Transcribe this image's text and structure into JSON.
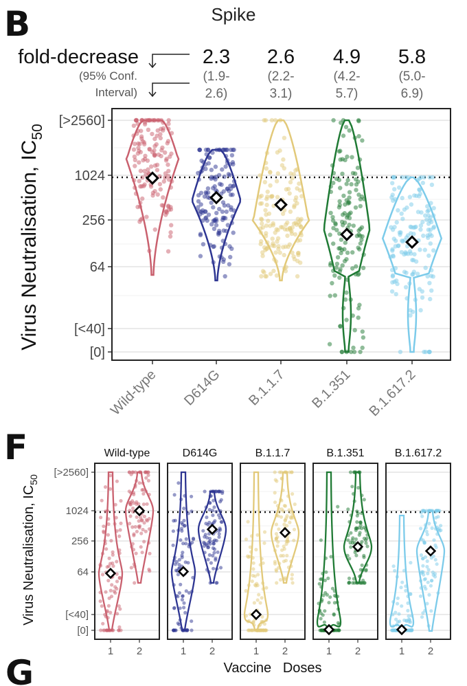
{
  "panels": {
    "b_letter": "B",
    "f_letter": "F",
    "g_letter": "G"
  },
  "chart_data": [
    {
      "id": "B",
      "type": "violin",
      "title": "Spike",
      "fold_label": "fold-decrease",
      "ci_label_line1": "(95% Conf.",
      "ci_label_line2": "Interval)",
      "ylabel_main": "Virus Neutralisation, IC",
      "ylabel_sub": "50",
      "yscale": "log2",
      "yticks": [
        "[>2560]",
        "1024",
        "256",
        "64",
        "[<40]",
        "[0]"
      ],
      "threshold": 1024,
      "categories": [
        "Wild-type",
        "D614G",
        "B.1.1.7",
        "B.1.351",
        "B.1.617.2"
      ],
      "colors": [
        "#c9606e",
        "#2d3592",
        "#e2c979",
        "#1f7a34",
        "#7ccbea"
      ],
      "medians": [
        940,
        520,
        420,
        170,
        135
      ],
      "fold_decrease": [
        {
          "value": "2.3",
          "ci_line1": "(1.9-",
          "ci_line2": "2.6)"
        },
        {
          "value": "2.6",
          "ci_line1": "(2.2-",
          "ci_line2": "3.1)"
        },
        {
          "value": "4.9",
          "ci_line1": "(4.2-",
          "ci_line2": "5.7)"
        },
        {
          "value": "5.8",
          "ci_line1": "(5.0-",
          "ci_line2": "6.9)"
        }
      ]
    },
    {
      "id": "F",
      "type": "violin",
      "ylabel_main": "Virus Neutralisation, IC",
      "ylabel_sub": "50",
      "xlabel": "Vaccine   Doses",
      "yticks": [
        "[>2560]",
        "1024",
        "256",
        "64",
        "[<40]",
        "[0]"
      ],
      "threshold": 1024,
      "doses": [
        "1",
        "2"
      ],
      "facets": [
        {
          "name": "Wild-type",
          "color": "#c9606e",
          "medians": [
            60,
            1024
          ]
        },
        {
          "name": "D614G",
          "color": "#2d3592",
          "medians": [
            65,
            440
          ]
        },
        {
          "name": "B.1.1.7",
          "color": "#e2c979",
          "medians": [
            "<40",
            380
          ]
        },
        {
          "name": "B.1.351",
          "color": "#1f7a34",
          "medians": [
            "0",
            200
          ]
        },
        {
          "name": "B.1.617.2",
          "color": "#7ccbea",
          "medians": [
            "0",
            165
          ]
        }
      ]
    }
  ]
}
